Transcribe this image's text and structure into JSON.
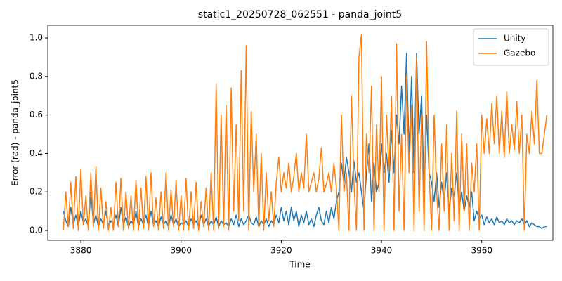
{
  "chart_data": {
    "type": "line",
    "title": "static1_20250728_062551 - panda_joint5",
    "xlabel": "Time",
    "ylabel": "Error (rad) - panda_joint5",
    "xlim": [
      3873.4,
      3974.2
    ],
    "ylim": [
      -0.051,
      1.066
    ],
    "xticks": [
      3880,
      3900,
      3920,
      3940,
      3960
    ],
    "yticks": [
      {
        "value": 0,
        "label": "0.0"
      },
      {
        "value": 0.2,
        "label": "0.2"
      },
      {
        "value": 0.4,
        "label": "0.4"
      },
      {
        "value": 0.6,
        "label": "0.6"
      },
      {
        "value": 0.8,
        "label": "0.8"
      },
      {
        "value": 1.0,
        "label": "1.0"
      }
    ],
    "legend": "upper right",
    "x": [
      3876.5,
      3877,
      3877.5,
      3878,
      3878.5,
      3879,
      3879.5,
      3880,
      3880.5,
      3881,
      3881.5,
      3882,
      3882.5,
      3883,
      3883.5,
      3884,
      3884.5,
      3885,
      3885.5,
      3886,
      3886.5,
      3887,
      3887.5,
      3888,
      3888.5,
      3889,
      3889.5,
      3890,
      3890.5,
      3891,
      3891.5,
      3892,
      3892.5,
      3893,
      3893.5,
      3894,
      3894.5,
      3895,
      3895.5,
      3896,
      3896.5,
      3897,
      3897.5,
      3898,
      3898.5,
      3899,
      3899.5,
      3900,
      3900.5,
      3901,
      3901.5,
      3902,
      3902.5,
      3903,
      3903.5,
      3904,
      3904.5,
      3905,
      3905.5,
      3906,
      3906.5,
      3907,
      3907.5,
      3908,
      3908.5,
      3909,
      3909.5,
      3910,
      3910.5,
      3911,
      3911.5,
      3912,
      3912.5,
      3913,
      3913.5,
      3914,
      3914.5,
      3915,
      3915.5,
      3916,
      3916.5,
      3917,
      3917.5,
      3918,
      3918.5,
      3919,
      3919.5,
      3920,
      3920.5,
      3921,
      3921.5,
      3922,
      3922.5,
      3923,
      3923.5,
      3924,
      3924.5,
      3925,
      3925.5,
      3926,
      3926.5,
      3927,
      3927.5,
      3928,
      3928.5,
      3929,
      3929.5,
      3930,
      3930.5,
      3931,
      3931.5,
      3932,
      3932.5,
      3933,
      3933.5,
      3934,
      3934.5,
      3935,
      3935.5,
      3936,
      3936.5,
      3937,
      3937.5,
      3938,
      3938.5,
      3939,
      3939.5,
      3940,
      3940.5,
      3941,
      3941.5,
      3942,
      3942.5,
      3943,
      3943.5,
      3944,
      3944.5,
      3945,
      3945.5,
      3946,
      3946.5,
      3947,
      3947.5,
      3948,
      3948.5,
      3949,
      3949.5,
      3950,
      3950.5,
      3951,
      3951.5,
      3952,
      3952.5,
      3953,
      3953.5,
      3954,
      3954.5,
      3955,
      3955.5,
      3956,
      3956.5,
      3957,
      3957.5,
      3958,
      3958.5,
      3959,
      3959.5,
      3960,
      3960.5,
      3961,
      3961.5,
      3962,
      3962.5,
      3963,
      3963.5,
      3964,
      3964.5,
      3965,
      3965.5,
      3966,
      3966.5,
      3967,
      3967.5,
      3968,
      3968.5,
      3969,
      3969.5,
      3970,
      3970.5,
      3971,
      3971.5,
      3972,
      3972.5,
      3973
    ],
    "series": [
      {
        "name": "Unity",
        "color": "#1f77b4",
        "values": [
          0.1,
          0.05,
          0.02,
          0.12,
          0.03,
          0.08,
          0.02,
          0.1,
          0.04,
          0.06,
          0.02,
          0.2,
          0.03,
          0.08,
          0.02,
          0.06,
          0.03,
          0.1,
          0.02,
          0.05,
          0.03,
          0.08,
          0.02,
          0.12,
          0.03,
          0.07,
          0.02,
          0.05,
          0.03,
          0.1,
          0.02,
          0.06,
          0.03,
          0.08,
          0.02,
          0.1,
          0.03,
          0.05,
          0.02,
          0.07,
          0.03,
          0.05,
          0.02,
          0.08,
          0.03,
          0.06,
          0.02,
          0.04,
          0.03,
          0.05,
          0.02,
          0.06,
          0.03,
          0.05,
          0.02,
          0.08,
          0.03,
          0.06,
          0.02,
          0.05,
          0.03,
          0.07,
          0.02,
          0.05,
          0.03,
          0.04,
          0.02,
          0.06,
          0.03,
          0.08,
          0.02,
          0.06,
          0.03,
          0.05,
          0.08,
          0.04,
          0.03,
          0.07,
          0.02,
          0.05,
          0.03,
          0.06,
          0.02,
          0.05,
          0.03,
          0.08,
          0.04,
          0.12,
          0.05,
          0.1,
          0.03,
          0.12,
          0.05,
          0.1,
          0.02,
          0.08,
          0.04,
          0.1,
          0.03,
          0.06,
          0.02,
          0.08,
          0.12,
          0.05,
          0.03,
          0.1,
          0.04,
          0.12,
          0.06,
          0.15,
          0.2,
          0.35,
          0.25,
          0.38,
          0.3,
          0.2,
          0.36,
          0.25,
          0.3,
          0.2,
          0.1,
          0.3,
          0.45,
          0.15,
          0.35,
          0.2,
          0.25,
          0.45,
          0.3,
          0.4,
          0.25,
          0.52,
          0.3,
          0.6,
          0.45,
          0.75,
          0.5,
          0.92,
          0.4,
          0.8,
          0.3,
          0.92,
          0.5,
          0.7,
          0.2,
          0.6,
          0.3,
          0.25,
          0.15,
          0.3,
          0.12,
          0.25,
          0.15,
          0.3,
          0.1,
          0.22,
          0.18,
          0.3,
          0.12,
          0.2,
          0.1,
          0.18,
          0.12,
          0.2,
          0.05,
          0.1,
          0.06,
          0.08,
          0.03,
          0.07,
          0.04,
          0.06,
          0.03,
          0.07,
          0.04,
          0.05,
          0.03,
          0.06,
          0.04,
          0.05,
          0.03,
          0.05,
          0.04,
          0.06,
          0.03,
          0.05,
          0.02,
          0.04,
          0.03,
          0.02,
          0.02,
          0.01,
          0.02,
          0.02
        ]
      },
      {
        "name": "Gazebo",
        "color": "#ff7f0e",
        "values": [
          0.0,
          0.2,
          0.02,
          0.25,
          0.01,
          0.28,
          0.0,
          0.32,
          0.03,
          0.18,
          0.0,
          0.3,
          0.02,
          0.33,
          0.0,
          0.22,
          0.01,
          0.15,
          0.0,
          0.12,
          0.0,
          0.25,
          0.02,
          0.27,
          0.0,
          0.2,
          0.01,
          0.18,
          0.0,
          0.26,
          0.0,
          0.22,
          0.01,
          0.28,
          0.0,
          0.3,
          0.02,
          0.17,
          0.0,
          0.2,
          0.01,
          0.3,
          0.0,
          0.21,
          0.02,
          0.26,
          0.0,
          0.18,
          0.0,
          0.27,
          0.0,
          0.2,
          0.01,
          0.25,
          0.0,
          0.15,
          0.02,
          0.22,
          0.0,
          0.3,
          0.0,
          0.76,
          0.01,
          0.6,
          0.02,
          0.65,
          0.0,
          0.74,
          0.1,
          0.55,
          0.05,
          0.83,
          0.1,
          0.96,
          0.0,
          0.62,
          0.2,
          0.5,
          0.02,
          0.4,
          0.0,
          0.3,
          0.05,
          0.2,
          0.02,
          0.25,
          0.38,
          0.2,
          0.3,
          0.22,
          0.35,
          0.2,
          0.28,
          0.4,
          0.2,
          0.3,
          0.22,
          0.5,
          0.2,
          0.25,
          0.3,
          0.2,
          0.27,
          0.43,
          0.2,
          0.24,
          0.3,
          0.2,
          0.35,
          0.22,
          0.0,
          0.6,
          0.2,
          0.3,
          0.0,
          0.7,
          0.25,
          0.0,
          0.9,
          1.02,
          0.0,
          0.5,
          0.3,
          0.75,
          0.0,
          0.55,
          0.2,
          0.8,
          0.0,
          0.6,
          0.3,
          0.7,
          0.0,
          0.97,
          0.1,
          0.5,
          0.0,
          0.8,
          0.3,
          0.65,
          0.0,
          0.9,
          0.1,
          0.6,
          0.0,
          0.98,
          0.3,
          0.0,
          0.6,
          0.2,
          0.0,
          0.45,
          0.1,
          0.55,
          0.0,
          0.4,
          0.05,
          0.62,
          0.0,
          0.5,
          0.1,
          0.45,
          0.0,
          0.35,
          0.2,
          0.45,
          0.0,
          0.6,
          0.4,
          0.58,
          0.4,
          0.66,
          0.45,
          0.7,
          0.4,
          0.62,
          0.38,
          0.72,
          0.4,
          0.55,
          0.42,
          0.67,
          0.4,
          0.6,
          0.0,
          0.5,
          0.4,
          0.62,
          0.45,
          0.78,
          0.4,
          0.4,
          0.5,
          0.6
        ]
      }
    ]
  }
}
